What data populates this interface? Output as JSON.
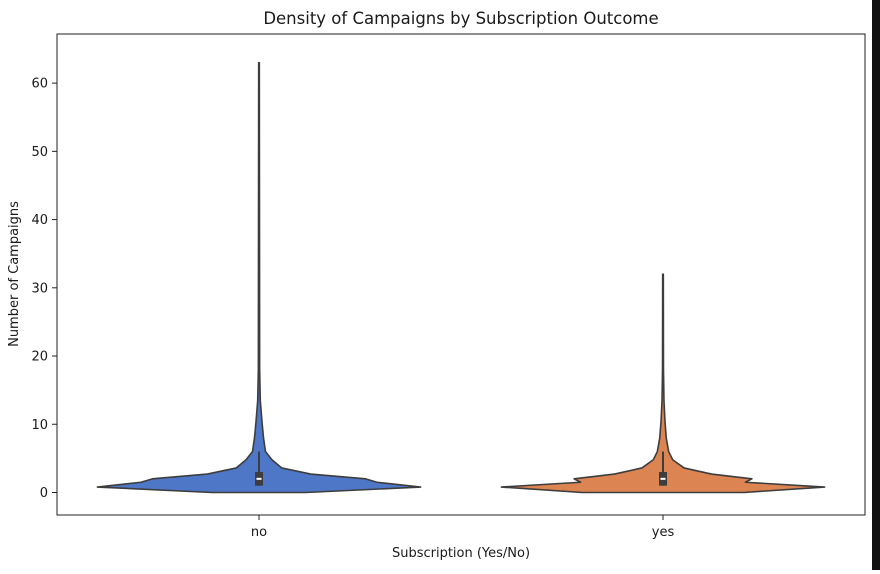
{
  "chart_data": {
    "type": "violin",
    "title": "Density of Campaigns by Subscription Outcome",
    "xlabel": "Subscription (Yes/No)",
    "ylabel": "Number of Campaigns",
    "categories": [
      "no",
      "yes"
    ],
    "ylim": [
      -3.3,
      67.2
    ],
    "yticks": [
      0,
      10,
      20,
      30,
      40,
      50,
      60
    ],
    "ytick_labels": [
      "0",
      "10",
      "20",
      "30",
      "40",
      "50",
      "60"
    ],
    "grid": false,
    "legend": "none",
    "series": [
      {
        "category": "no",
        "color": "#4f77c8",
        "min": 1,
        "max": 63,
        "quartiles": [
          1,
          2,
          3
        ],
        "median": 2,
        "whisker_high": 6,
        "density_profile": [
          {
            "y": 0.0,
            "w": 0.29
          },
          {
            "y": 0.8,
            "w": 1.0
          },
          {
            "y": 1.5,
            "w": 0.73
          },
          {
            "y": 2.0,
            "w": 0.66
          },
          {
            "y": 2.7,
            "w": 0.32
          },
          {
            "y": 3.6,
            "w": 0.14
          },
          {
            "y": 4.8,
            "w": 0.08
          },
          {
            "y": 6.0,
            "w": 0.04
          },
          {
            "y": 8.0,
            "w": 0.028
          },
          {
            "y": 10.5,
            "w": 0.018
          },
          {
            "y": 13.5,
            "w": 0.008
          },
          {
            "y": 18.0,
            "w": 0.004
          },
          {
            "y": 63.0,
            "w": 0.002
          }
        ]
      },
      {
        "category": "yes",
        "color": "#dd8453",
        "min": 1,
        "max": 32,
        "quartiles": [
          1,
          2,
          3
        ],
        "median": 2,
        "whisker_high": 6,
        "density_profile": [
          {
            "y": 0.0,
            "w": 0.5
          },
          {
            "y": 0.8,
            "w": 1.0
          },
          {
            "y": 1.5,
            "w": 0.51
          },
          {
            "y": 2.0,
            "w": 0.55
          },
          {
            "y": 2.7,
            "w": 0.3
          },
          {
            "y": 3.6,
            "w": 0.13
          },
          {
            "y": 4.8,
            "w": 0.06
          },
          {
            "y": 6.0,
            "w": 0.035
          },
          {
            "y": 8.0,
            "w": 0.02
          },
          {
            "y": 10.5,
            "w": 0.012
          },
          {
            "y": 13.5,
            "w": 0.006
          },
          {
            "y": 18.0,
            "w": 0.003
          },
          {
            "y": 32.0,
            "w": 0.002
          }
        ]
      }
    ]
  }
}
